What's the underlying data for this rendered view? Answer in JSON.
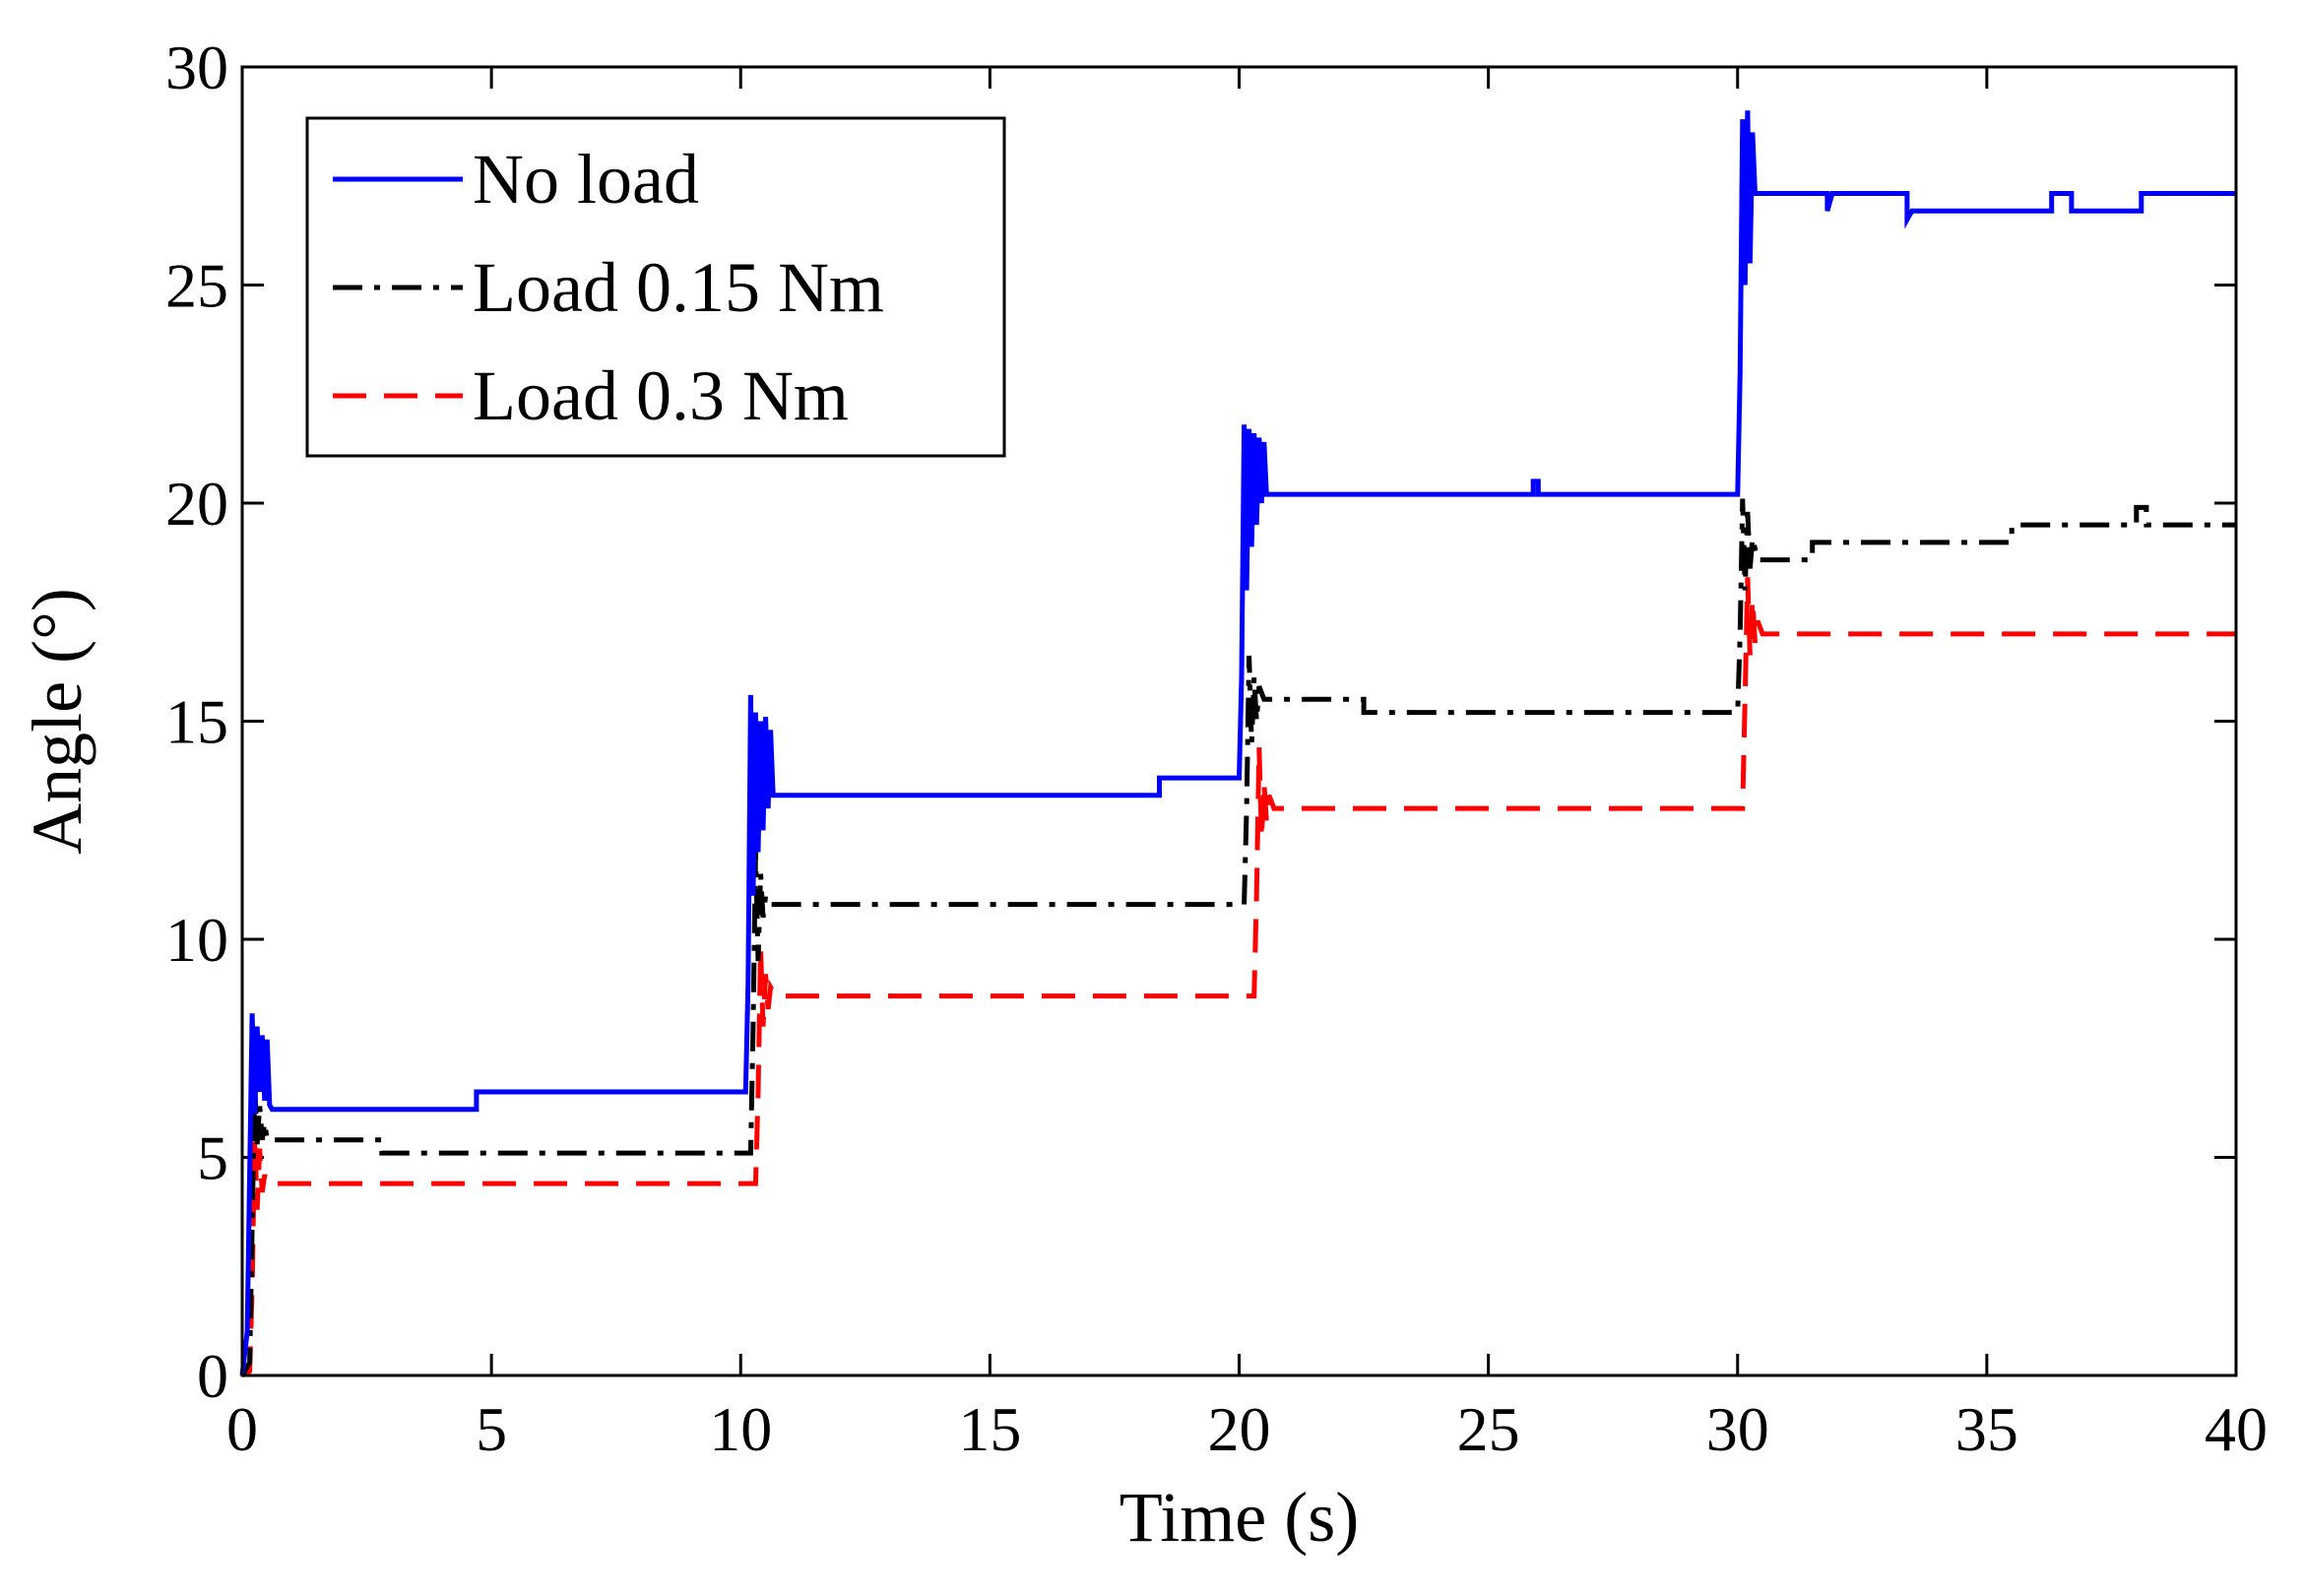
{
  "chart_data": {
    "type": "line",
    "title": "",
    "xlabel": "Time (s)",
    "ylabel": "Angle (°)",
    "xlim": [
      0,
      40
    ],
    "ylim": [
      0,
      30
    ],
    "xticks": [
      0,
      5,
      10,
      15,
      20,
      25,
      30,
      35,
      40
    ],
    "yticks": [
      0,
      5,
      10,
      15,
      20,
      25,
      30
    ],
    "grid": false,
    "legend_position": "top-left",
    "series": [
      {
        "name": "No load",
        "color": "#0000ff",
        "style": "solid",
        "x": [
          0,
          0.1,
          0.2,
          0.25,
          0.3,
          0.35,
          0.4,
          0.45,
          0.5,
          0.55,
          0.6,
          4.7,
          4.7,
          10.1,
          10.15,
          10.2,
          10.25,
          10.3,
          10.35,
          10.4,
          10.45,
          10.5,
          10.55,
          10.6,
          10.65,
          10.7,
          18.4,
          18.4,
          20.0,
          20.05,
          20.1,
          20.15,
          20.2,
          20.25,
          20.3,
          20.35,
          20.4,
          20.45,
          20.5,
          20.55,
          25.9,
          25.9,
          26.0,
          26.0,
          30.0,
          30.05,
          30.1,
          30.15,
          30.2,
          30.25,
          30.3,
          30.35,
          30.4,
          31.8,
          31.8,
          31.9,
          31.9,
          33.4,
          33.4,
          33.5,
          33.5,
          36.3,
          36.3,
          36.7,
          36.7,
          38.1,
          38.1,
          40.0
        ],
        "y": [
          0,
          1,
          8.3,
          6,
          8,
          6.5,
          7.8,
          6.3,
          7.7,
          6.2,
          6.1,
          6.1,
          6.5,
          6.5,
          9,
          15.6,
          11,
          15.2,
          12,
          15,
          12.5,
          15.1,
          13,
          14.8,
          13.3,
          13.3,
          13.3,
          13.7,
          13.7,
          16,
          21.8,
          18,
          21.7,
          19,
          21.6,
          19.5,
          21.5,
          20,
          21.4,
          20.2,
          20.2,
          20.5,
          20.5,
          20.2,
          20.2,
          23,
          28.8,
          25,
          29,
          25.5,
          28.5,
          27.1,
          27.1,
          27.1,
          26.7,
          27.1,
          27.1,
          27.1,
          26.5,
          26.7,
          26.7,
          26.7,
          27.1,
          27.1,
          26.7,
          26.7,
          27.1,
          27.1
        ],
        "y_clean": true
      },
      {
        "name": "Load 0.15 Nm",
        "color": "#000000",
        "style": "dashdot",
        "x": [
          0,
          0.15,
          0.25,
          0.3,
          0.35,
          0.4,
          0.45,
          0.5,
          2.8,
          2.8,
          3.0,
          10.2,
          10.25,
          10.3,
          10.35,
          10.4,
          10.45,
          10.5,
          10.6,
          20.1,
          20.15,
          20.2,
          20.25,
          20.3,
          20.35,
          20.4,
          20.5,
          22.5,
          22.5,
          30.0,
          30.05,
          30.1,
          30.15,
          30.2,
          30.25,
          30.3,
          30.4,
          30.6,
          31.5,
          31.5,
          35.5,
          35.5,
          38.0,
          38.0,
          38.2,
          38.2,
          40.0
        ],
        "y": [
          0,
          0.3,
          6.7,
          5.3,
          6.2,
          5.4,
          5.8,
          5.4,
          5.4,
          5.1,
          5.1,
          5.1,
          8,
          12,
          9.5,
          11.5,
          10.5,
          11,
          10.8,
          10.8,
          13,
          16.5,
          14.5,
          16,
          15,
          15.8,
          15.5,
          15.5,
          15.2,
          15.2,
          17,
          20.1,
          18,
          19.8,
          18.5,
          19.2,
          18.7,
          18.7,
          18.7,
          19.1,
          19.1,
          19.5,
          19.5,
          19.9,
          19.9,
          19.5,
          19.5
        ]
      },
      {
        "name": "Load 0.3 Nm",
        "color": "#ff0000",
        "style": "dashed",
        "x": [
          0,
          0.15,
          0.2,
          0.25,
          0.3,
          0.35,
          0.4,
          0.45,
          0.5,
          10.3,
          10.35,
          10.4,
          10.45,
          10.5,
          10.55,
          10.6,
          10.7,
          20.3,
          20.35,
          20.4,
          20.45,
          20.5,
          20.55,
          20.6,
          20.7,
          30.1,
          30.15,
          30.2,
          30.25,
          30.3,
          30.35,
          30.4,
          30.5,
          40.0
        ],
        "y": [
          0,
          0.1,
          2,
          5.5,
          3.8,
          5.2,
          4.2,
          4.6,
          4.4,
          4.4,
          6.5,
          9.8,
          8,
          9.2,
          8.4,
          8.9,
          8.7,
          8.7,
          11,
          14.4,
          12.3,
          13.6,
          12.7,
          13.3,
          13.0,
          13.0,
          15.5,
          18.3,
          16.5,
          17.8,
          16.8,
          17.3,
          17.0,
          17.0
        ]
      }
    ]
  }
}
